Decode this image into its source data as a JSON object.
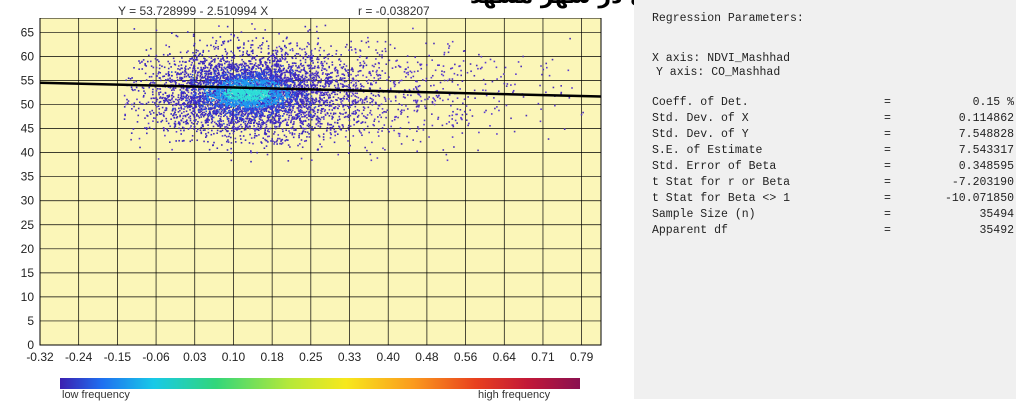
{
  "header": {
    "equation": "Y = 53.728999 - 2.510994 X",
    "correlation": "r = -0.038207",
    "cropped_caption": "تغییرات دو متغیر مونوکسید کربن و شاخص پوشش گیاهی در شهر مشهد"
  },
  "chart_data": {
    "type": "scatter",
    "subtype": "density-scatter",
    "title": "Y = 53.728999 - 2.510994 X",
    "xlim": [
      -0.32,
      0.82
    ],
    "ylim": [
      0,
      68
    ],
    "x_tick_labels": [
      "-0.32",
      "-0.24",
      "-0.15",
      "-0.06",
      "0.03",
      "0.10",
      "0.18",
      "0.25",
      "0.33",
      "0.40",
      "0.48",
      "0.56",
      "0.64",
      "0.71",
      "0.79"
    ],
    "y_tick_labels": [
      "0",
      "5",
      "10",
      "15",
      "20",
      "25",
      "30",
      "35",
      "40",
      "45",
      "50",
      "55",
      "60",
      "65"
    ],
    "regression_line": {
      "intercept": 53.728999,
      "slope": -2.510994,
      "x_range": [
        -0.32,
        0.82
      ]
    },
    "density_core": {
      "x_center": 0.1,
      "y_center": 52.5,
      "x_spread": 0.13,
      "y_spread": 4.2
    },
    "point_extent": {
      "x": [
        -0.15,
        0.79
      ],
      "y": [
        38,
        67
      ]
    },
    "grid": true,
    "background_color": "#fbf6b8",
    "legend": {
      "low_label": "low frequency",
      "high_label": "high frequency",
      "placement": "bottom"
    }
  },
  "panel": {
    "title": "Regression Parameters:",
    "x_axis": "X axis: NDVI_Mashhad",
    "y_axis": "Y axis: CO_Mashhad",
    "stats": [
      {
        "label": "Coeff. of Det.",
        "eq": "=",
        "value": "0.15 %"
      },
      {
        "label": "Std. Dev. of X",
        "eq": "=",
        "value": "0.114862"
      },
      {
        "label": "Std. Dev. of Y",
        "eq": "=",
        "value": "7.548828"
      },
      {
        "label": "S.E. of Estimate",
        "eq": "=",
        "value": "7.543317"
      },
      {
        "label": "Std. Error of Beta",
        "eq": "=",
        "value": "0.348595"
      },
      {
        "label": "t Stat for r or Beta",
        "eq": "=",
        "value": "-7.203190"
      },
      {
        "label": "t Stat for Beta <> 1",
        "eq": "=",
        "value": "-10.071850"
      },
      {
        "label": "Sample Size (n)",
        "eq": "=",
        "value": "35494"
      },
      {
        "label": "Apparent df",
        "eq": "=",
        "value": "35492"
      }
    ]
  },
  "colors": {
    "plot_bg": "#fbf6b8",
    "grid": "#000000",
    "line": "#000000"
  }
}
